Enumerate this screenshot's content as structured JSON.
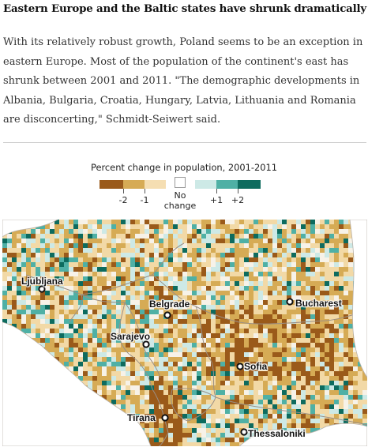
{
  "headline": "Eastern Europe and the Baltic states have shrunk dramatically",
  "body_text": "With its relatively robust growth, Poland seems to be an exception in eastern Europe. Most of the population of the continent's east has shrunk between 2001 and 2011. \"The demographic developments in Albania, Bulgaria, Croatia, Hungary, Latvia, Lithuania and Romania are disconcerting,\" Schmidt-Seiwert said.",
  "legend": {
    "title": "Percent change in population, 2001-2011",
    "swatch_colors": [
      "#9a5a1a",
      "#d6ab55",
      "#f5deb2",
      "#ffffff",
      "#cde9e6",
      "#4fb0a5",
      "#0d6b5e"
    ],
    "tick_labels": [
      "-2",
      "-1",
      "+1",
      "+2"
    ],
    "no_change_label": "No change"
  },
  "map": {
    "colors": {
      "dark_decline": "#9a5a1a",
      "decline": "#d6ab55",
      "slight_decline": "#f2d9a6",
      "no_change": "#f7f2e8",
      "slight_growth": "#cde9e6",
      "growth": "#4fb0a5",
      "strong_growth": "#0d6b5e",
      "sea": "#ffffff",
      "border": "#9a8f86"
    },
    "cities": [
      {
        "name": "Ljubljana"
      },
      {
        "name": "Belgrade"
      },
      {
        "name": "Bucharest"
      },
      {
        "name": "Sarajevo"
      },
      {
        "name": "Sofia"
      },
      {
        "name": "Tirana"
      },
      {
        "name": "Thessaloniki"
      }
    ]
  }
}
